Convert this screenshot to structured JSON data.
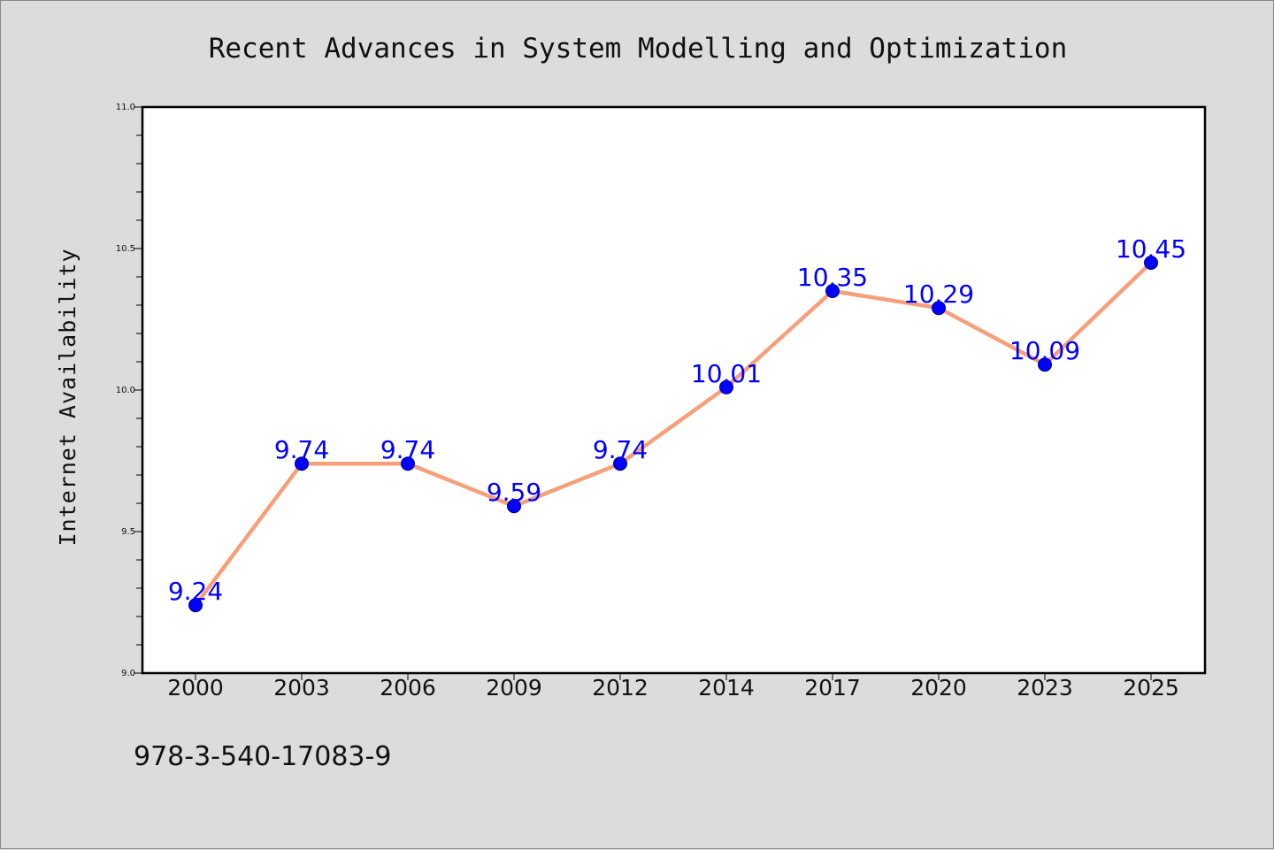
{
  "chart_data": {
    "type": "line",
    "title": "Recent Advances in System Modelling and Optimization",
    "xlabel": "",
    "ylabel": "Internet Availability",
    "categories": [
      "2000",
      "2003",
      "2006",
      "2009",
      "2012",
      "2014",
      "2017",
      "2020",
      "2023",
      "2025"
    ],
    "series": [
      {
        "values": [
          9.24,
          9.74,
          9.74,
          9.59,
          9.74,
          10.01,
          10.35,
          10.29,
          10.09,
          10.45
        ]
      }
    ],
    "data_labels": [
      "9.24",
      "9.74",
      "9.74",
      "9.59",
      "9.74",
      "10.01",
      "10.35",
      "10.29",
      "10.09",
      "10.45"
    ],
    "ylim": [
      9.0,
      11.0
    ],
    "yticks": [
      "9.0",
      "9.5",
      "10.0",
      "10.5",
      "11.0"
    ],
    "y_minor_tick_step": 0.1,
    "grid": false,
    "legend": "none",
    "colors": {
      "line": "#f5a07a",
      "marker": "#0000ff",
      "label": "#0000ff",
      "plot_background": "#ffffff",
      "page_background": "#dcdcdc"
    }
  },
  "footnote": "978-3-540-17083-9"
}
